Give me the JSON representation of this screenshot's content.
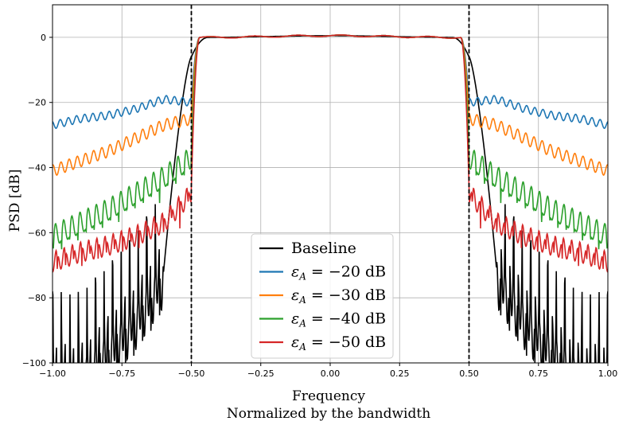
{
  "chart_data": {
    "type": "line",
    "xlabel": "Frequency",
    "xlabel_line2": "Normalized by the bandwidth",
    "ylabel": "PSD [dB]",
    "xlim": [
      -1.0,
      1.0
    ],
    "ylim": [
      -100,
      10
    ],
    "x_ticks": [
      -1.0,
      -0.75,
      -0.5,
      -0.25,
      0.0,
      0.25,
      0.5,
      0.75,
      1.0
    ],
    "x_tick_labels": [
      "−1.00",
      "−0.75",
      "−0.50",
      "−0.25",
      "0.00",
      "0.25",
      "0.50",
      "0.75",
      "1.00"
    ],
    "y_ticks": [
      -100,
      -80,
      -60,
      -40,
      -20,
      0
    ],
    "y_tick_labels": [
      "−100",
      "−80",
      "−60",
      "−40",
      "−20",
      "0"
    ],
    "grid": true,
    "legend_position": "lower-center",
    "vlines": [
      -0.5,
      0.5
    ],
    "series": [
      {
        "name": "Baseline",
        "legend_prefix": "",
        "legend_value": "",
        "color": "#000000",
        "style": "baseline",
        "floor": [
          [
            0.6,
            -72
          ],
          [
            0.7,
            -85
          ],
          [
            0.8,
            -95
          ],
          [
            0.9,
            -103
          ]
        ],
        "osc": 7
      },
      {
        "name": "εA = −20 dB",
        "legend_prefix": "ε",
        "legend_sub": "A",
        "legend_value": " = −20 dB",
        "color": "#1f77b4",
        "style": "imp",
        "floor": [
          [
            0.5,
            -20
          ],
          [
            0.6,
            -19
          ],
          [
            0.7,
            -22
          ],
          [
            0.8,
            -24
          ],
          [
            0.9,
            -25
          ],
          [
            1.0,
            -27
          ]
        ],
        "osc": 1.2
      },
      {
        "name": "εA = −30 dB",
        "legend_prefix": "ε",
        "legend_sub": "A",
        "legend_value": " = −30 dB",
        "color": "#ff7f0e",
        "style": "imp",
        "floor": [
          [
            0.5,
            -25
          ],
          [
            0.6,
            -27
          ],
          [
            0.7,
            -31
          ],
          [
            0.8,
            -35
          ],
          [
            0.9,
            -38
          ],
          [
            1.0,
            -41
          ]
        ],
        "osc": 1.8
      },
      {
        "name": "εA = −40 dB",
        "legend_prefix": "ε",
        "legend_sub": "A",
        "legend_value": " = −40 dB",
        "color": "#2ca02c",
        "style": "imp",
        "floor": [
          [
            0.5,
            -36
          ],
          [
            0.6,
            -42
          ],
          [
            0.7,
            -47
          ],
          [
            0.8,
            -52
          ],
          [
            0.9,
            -56
          ],
          [
            1.0,
            -60
          ]
        ],
        "osc": 3.5
      },
      {
        "name": "εA = −50 dB",
        "legend_prefix": "ε",
        "legend_sub": "A",
        "legend_value": " = −50 dB",
        "color": "#d62728",
        "style": "imp",
        "floor": [
          [
            0.5,
            -46
          ],
          [
            0.6,
            -55
          ],
          [
            0.7,
            -59
          ],
          [
            0.8,
            -62
          ],
          [
            0.9,
            -64
          ],
          [
            1.0,
            -67
          ]
        ],
        "osc": 5
      }
    ]
  }
}
